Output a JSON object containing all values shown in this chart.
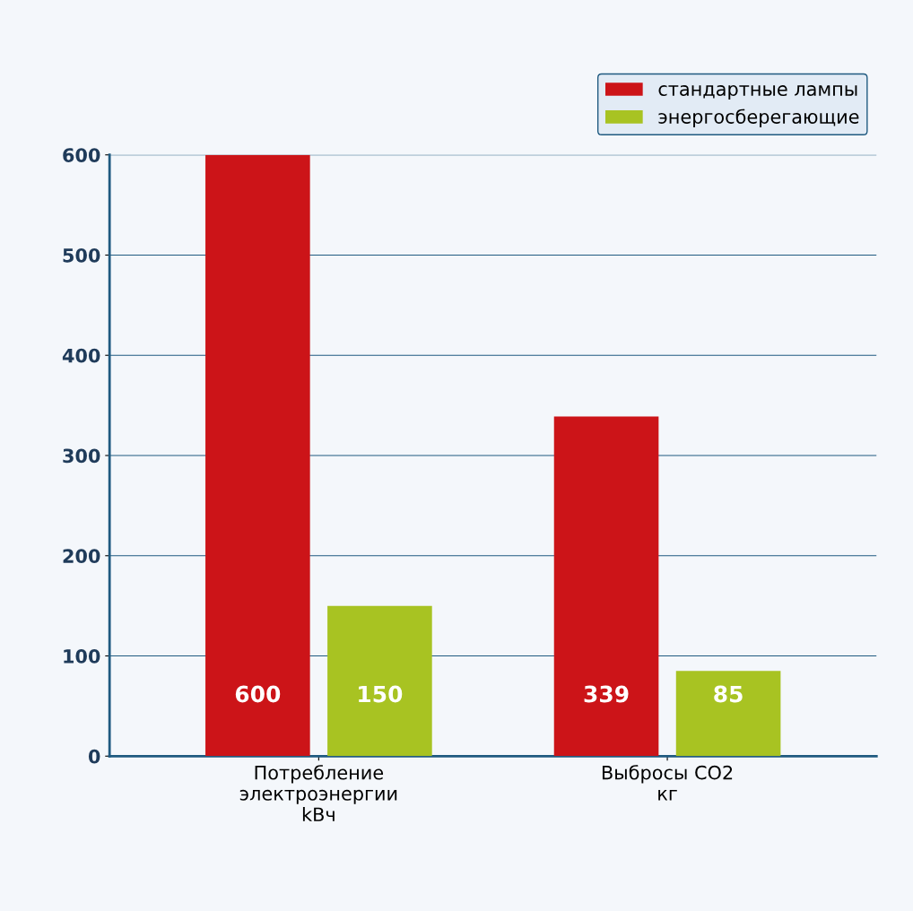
{
  "chart_data": {
    "type": "bar",
    "categories": [
      "Потребление\nэлектроэнергии\nkBч",
      "Выбросы CO2\nкг"
    ],
    "series": [
      {
        "name": "стандартные лампы",
        "color": "#cc1418",
        "values": [
          600,
          339
        ]
      },
      {
        "name": "энергосберегающие",
        "color": "#a8c322",
        "values": [
          150,
          85
        ]
      }
    ],
    "ylim": [
      0,
      600
    ],
    "yticks": [
      0,
      100,
      200,
      300,
      400,
      500,
      600
    ],
    "grid": "y",
    "legend": "top right",
    "data_labels": true
  }
}
